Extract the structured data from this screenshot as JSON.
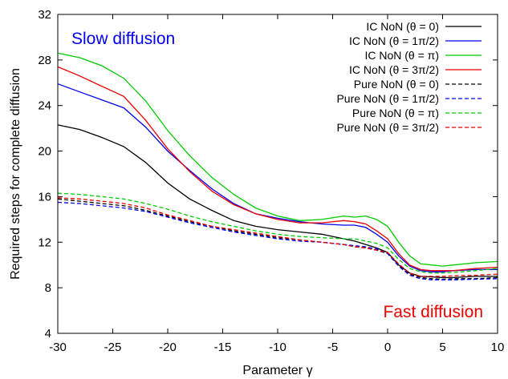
{
  "chart_data": {
    "type": "line",
    "title": "",
    "xlabel": "Parameter γ",
    "ylabel": "Required steps for complete diffusion",
    "xlim": [
      -30,
      10
    ],
    "ylim": [
      4,
      32
    ],
    "xticks": [
      "-30",
      "-25",
      "-20",
      "-15",
      "-10",
      "-5",
      "0",
      "5",
      "10"
    ],
    "yticks": [
      "4",
      "8",
      "12",
      "16",
      "20",
      "24",
      "28",
      "32"
    ],
    "grid": false,
    "legend_position": "top-right",
    "annotations": [
      {
        "text": "Slow diffusion",
        "color": "#0000ee",
        "position": "top-left"
      },
      {
        "text": "Fast diffusion",
        "color": "#ee0000",
        "position": "bottom-right"
      }
    ],
    "x": [
      -30,
      -28,
      -26,
      -24,
      -22,
      -20,
      -18,
      -16,
      -14,
      -12,
      -10,
      -8,
      -6,
      -4,
      -3,
      -2,
      -1,
      0,
      1,
      2,
      3,
      4,
      5,
      6,
      8,
      10
    ],
    "series": [
      {
        "name": "IC NoN (θ = 0)",
        "color": "#000000",
        "dash": "solid",
        "values": [
          22.3,
          21.9,
          21.2,
          20.4,
          19.0,
          17.2,
          15.8,
          14.8,
          13.9,
          13.4,
          13.1,
          12.9,
          12.7,
          12.3,
          12.1,
          11.8,
          11.5,
          11.1,
          10.0,
          9.3,
          9.0,
          8.95,
          8.9,
          8.9,
          9.0,
          9.0
        ]
      },
      {
        "name": "IC NoN (θ = 1π/2)",
        "color": "#0000ee",
        "dash": "solid",
        "values": [
          25.9,
          25.2,
          24.5,
          23.8,
          22.1,
          20.0,
          18.3,
          16.7,
          15.4,
          14.5,
          14.1,
          13.8,
          13.6,
          13.5,
          13.5,
          13.3,
          12.7,
          12.0,
          10.8,
          9.9,
          9.5,
          9.4,
          9.4,
          9.5,
          9.6,
          9.6
        ]
      },
      {
        "name": "IC NoN (θ = π)",
        "color": "#00cc00",
        "dash": "solid",
        "values": [
          28.6,
          28.2,
          27.5,
          26.4,
          24.4,
          21.8,
          19.6,
          17.7,
          16.2,
          15.0,
          14.3,
          13.9,
          14.0,
          14.3,
          14.2,
          14.3,
          14.0,
          13.4,
          12.0,
          10.8,
          10.1,
          10.0,
          9.9,
          10.0,
          10.2,
          10.3
        ]
      },
      {
        "name": "IC NoN (θ = 3π/2)",
        "color": "#ee0000",
        "dash": "solid",
        "values": [
          27.4,
          26.6,
          25.7,
          24.8,
          22.7,
          20.2,
          18.2,
          16.5,
          15.3,
          14.5,
          14.0,
          13.7,
          13.7,
          13.9,
          13.8,
          13.6,
          13.0,
          12.3,
          11.0,
          10.0,
          9.6,
          9.5,
          9.5,
          9.5,
          9.7,
          9.8
        ]
      },
      {
        "name": "Pure NoN (θ = 0)",
        "color": "#000000",
        "dash": "dashed",
        "values": [
          15.8,
          15.6,
          15.4,
          15.2,
          14.8,
          14.3,
          13.8,
          13.4,
          13.0,
          12.7,
          12.4,
          12.2,
          12.0,
          11.8,
          11.6,
          11.5,
          11.3,
          11.0,
          10.0,
          9.2,
          8.9,
          8.8,
          8.75,
          8.8,
          8.8,
          8.9
        ]
      },
      {
        "name": "Pure NoN (θ = 1π/2)",
        "color": "#0000ee",
        "dash": "dashed",
        "values": [
          15.5,
          15.4,
          15.2,
          15.0,
          14.7,
          14.2,
          13.7,
          13.3,
          12.9,
          12.6,
          12.3,
          12.1,
          12.0,
          11.8,
          11.7,
          11.6,
          11.4,
          11.0,
          9.9,
          9.1,
          8.8,
          8.7,
          8.7,
          8.7,
          8.75,
          8.8
        ]
      },
      {
        "name": "Pure NoN (θ = π)",
        "color": "#00cc00",
        "dash": "dashed",
        "values": [
          16.3,
          16.2,
          16.0,
          15.8,
          15.4,
          14.9,
          14.3,
          13.8,
          13.4,
          13.0,
          12.7,
          12.5,
          12.4,
          12.3,
          12.3,
          12.1,
          11.9,
          11.5,
          10.5,
          9.7,
          9.4,
          9.3,
          9.3,
          9.35,
          9.5,
          9.7
        ]
      },
      {
        "name": "Pure NoN (θ = 3π/2)",
        "color": "#ee0000",
        "dash": "dashed",
        "values": [
          15.9,
          15.8,
          15.6,
          15.4,
          15.0,
          14.4,
          13.9,
          13.4,
          13.1,
          12.8,
          12.5,
          12.2,
          12.0,
          11.8,
          11.6,
          11.5,
          11.3,
          11.1,
          10.1,
          9.3,
          9.0,
          9.0,
          9.0,
          9.05,
          9.1,
          9.2
        ]
      }
    ]
  }
}
